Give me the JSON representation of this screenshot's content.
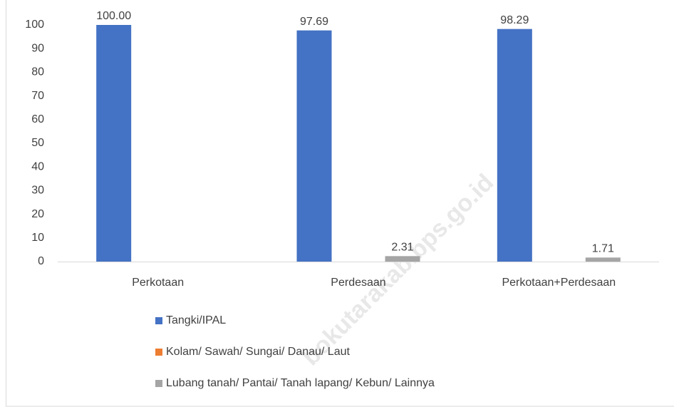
{
  "chart_data": {
    "type": "bar",
    "categories": [
      "Perkotaan",
      "Perdesaan",
      "Perkotaan+Perdesaan"
    ],
    "series": [
      {
        "name": "Tangki/IPAL",
        "color": "#4472c4",
        "values": [
          100,
          97.69,
          98.29
        ],
        "value_labels": [
          "100.00",
          null,
          null
        ]
      },
      {
        "name": "Kolam/ Sawah/ Sungai/ Danau/ Laut",
        "color": "#ed7d31",
        "values": [
          0,
          0,
          0
        ],
        "value_labels": [
          null,
          null,
          null
        ]
      },
      {
        "name": "Lubang tanah/ Pantai/ Tanah lapang/ Kebun/ Lainnya",
        "color": "#a5a5a5",
        "values": [
          0,
          2.31,
          1.71
        ],
        "value_labels": [
          null,
          null,
          null
        ]
      }
    ],
    "ylim": [
      0,
      100
    ],
    "yticks": [
      0,
      10,
      20,
      30,
      40,
      50,
      60,
      70,
      80,
      90,
      100
    ],
    "grid": false,
    "legend": "bottom",
    "watermark": "bokutarakab.bps.go.id"
  }
}
